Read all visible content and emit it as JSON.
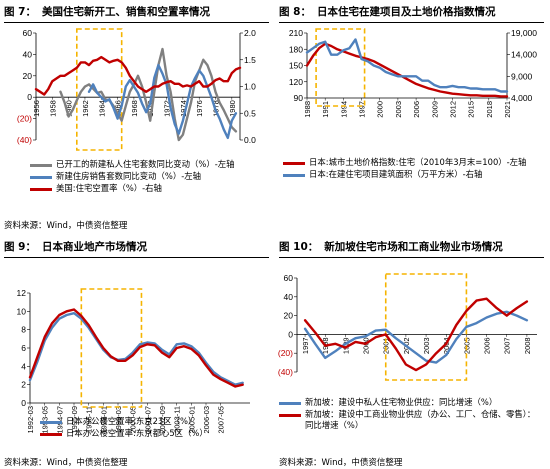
{
  "source": "资料来源：Wind，中债资信整理",
  "colors": {
    "red": "#c00000",
    "blue": "#4f81bd",
    "gray": "#808080",
    "highlight": "#f5b400",
    "neg": "#c00000"
  },
  "chart_data": [
    {
      "type": "line",
      "number": "图 7：",
      "title": "美国住宅新开工、销售和空置率情况",
      "left_axis": {
        "ticks": [
          "60",
          "40",
          "20",
          "0",
          "(20)",
          "(40)"
        ],
        "values": [
          60,
          40,
          20,
          0,
          -20,
          -40
        ],
        "range": [
          -40,
          60
        ]
      },
      "right_axis": {
        "ticks": [
          "2.0",
          "1.5",
          "1.0",
          "0.5",
          "0.0"
        ],
        "values": [
          2.0,
          1.5,
          1.0,
          0.5,
          0.0
        ],
        "range": [
          0,
          2
        ]
      },
      "x_ticks": [
        "1956",
        "1958",
        "1960",
        "1962",
        "1964",
        "1966",
        "1968",
        "1970",
        "1972",
        "1974",
        "1976",
        "1978",
        "1980"
      ],
      "x_range": [
        1956,
        1981
      ],
      "highlight_x": [
        1961,
        1966.5
      ],
      "series": [
        {
          "name": "已开工的新建私人住宅套数同比变动（%）-左轴",
          "axis": "left",
          "color": "gray",
          "x": [
            1959,
            1959.5,
            1960,
            1960.5,
            1961,
            1961.5,
            1962,
            1962.5,
            1963,
            1963.5,
            1964,
            1964.5,
            1965,
            1965.5,
            1966,
            1966.5,
            1967,
            1967.5,
            1968,
            1968.5,
            1969,
            1969.5,
            1970,
            1970.5,
            1971,
            1971.5,
            1972,
            1972.5,
            1973,
            1973.5,
            1974,
            1974.5,
            1975,
            1975.5,
            1976,
            1976.5,
            1977,
            1977.5,
            1978,
            1978.5,
            1979,
            1979.5,
            1980,
            1980.5
          ],
          "y": [
            5,
            -5,
            -18,
            -12,
            -3,
            5,
            10,
            12,
            8,
            4,
            5,
            -2,
            -3,
            -8,
            -15,
            -22,
            -8,
            5,
            12,
            20,
            10,
            -5,
            -22,
            5,
            30,
            45,
            20,
            5,
            -20,
            -40,
            -35,
            -20,
            -5,
            15,
            25,
            35,
            30,
            20,
            5,
            -5,
            -12,
            -20,
            -28,
            -32
          ]
        },
        {
          "name": "新建住房销售套数同比变动（%）-左轴",
          "axis": "left",
          "color": "blue",
          "x": [
            1962.5,
            1963,
            1963.5,
            1964,
            1964.5,
            1965,
            1965.5,
            1966,
            1966.5,
            1967,
            1967.5,
            1968,
            1968.5,
            1969,
            1969.5,
            1970,
            1970.5,
            1971,
            1971.5,
            1972,
            1972.5,
            1973,
            1973.5,
            1974,
            1974.5,
            1975,
            1975.5,
            1976,
            1976.5,
            1977,
            1977.5,
            1978,
            1978.5,
            1979,
            1979.5,
            1980,
            1980.5
          ],
          "y": [
            5,
            12,
            4,
            0,
            -4,
            -2,
            -10,
            -20,
            -8,
            10,
            16,
            10,
            4,
            -6,
            -14,
            -6,
            18,
            30,
            22,
            12,
            -10,
            -25,
            -34,
            -22,
            -6,
            10,
            18,
            25,
            20,
            10,
            0,
            -12,
            -20,
            -30,
            -38,
            -22,
            -15
          ]
        },
        {
          "name": "美国:住宅空置率（%）-右轴",
          "axis": "right",
          "color": "red",
          "x": [
            1956,
            1956.5,
            1957,
            1957.5,
            1958,
            1958.5,
            1959,
            1959.5,
            1960,
            1960.5,
            1961,
            1961.5,
            1962,
            1962.5,
            1963,
            1963.5,
            1964,
            1964.5,
            1965,
            1965.5,
            1966,
            1966.5,
            1967,
            1967.5,
            1968,
            1968.5,
            1969,
            1969.5,
            1970,
            1970.5,
            1971,
            1971.5,
            1972,
            1972.5,
            1973,
            1973.5,
            1974,
            1974.5,
            1975,
            1975.5,
            1976,
            1976.5,
            1977,
            1977.5,
            1978,
            1978.5,
            1979,
            1979.5,
            1980,
            1980.5,
            1981
          ],
          "y": [
            0.95,
            0.9,
            0.85,
            0.95,
            1.1,
            1.15,
            1.2,
            1.2,
            1.25,
            1.3,
            1.35,
            1.45,
            1.45,
            1.4,
            1.48,
            1.5,
            1.55,
            1.5,
            1.45,
            1.48,
            1.5,
            1.45,
            1.35,
            1.2,
            1.1,
            1.0,
            0.95,
            0.9,
            0.95,
            1.0,
            1.0,
            1.05,
            1.08,
            1.1,
            1.05,
            1.05,
            1.0,
            1.02,
            1.0,
            1.05,
            1.1,
            1.0,
            1.0,
            1.05,
            1.12,
            1.15,
            1.1,
            1.1,
            1.25,
            1.32,
            1.35
          ]
        }
      ]
    },
    {
      "type": "line",
      "number": "图 8：",
      "title": "日本住宅在建项目及土地价格指数情况",
      "left_axis": {
        "ticks": [
          "210",
          "180",
          "150",
          "120",
          "90"
        ],
        "values": [
          210,
          180,
          150,
          120,
          90
        ],
        "range": [
          90,
          210
        ]
      },
      "right_axis": {
        "ticks": [
          "19,000",
          "14,000",
          "9,000",
          "4,000"
        ],
        "values": [
          19000,
          14000,
          9000,
          4000
        ],
        "range": [
          4000,
          19000
        ]
      },
      "x_ticks": [
        "1988",
        "1991",
        "1994",
        "1997",
        "2000",
        "2003",
        "2006",
        "2009",
        "2012",
        "2015",
        "2018",
        "2021"
      ],
      "x_range": [
        1988,
        2021
      ],
      "highlight_x": [
        1989.5,
        1997.5
      ],
      "series": [
        {
          "name": "日本:城市土地价格指数:住宅（2010年3月末=100）-左轴",
          "axis": "left",
          "color": "red",
          "x": [
            1988,
            1989,
            1990,
            1991,
            1992,
            1993,
            1994,
            1995,
            1996,
            1997,
            1998,
            1999,
            2000,
            2001,
            2002,
            2003,
            2004,
            2005,
            2006,
            2007,
            2008,
            2009,
            2010,
            2011,
            2012,
            2013,
            2014,
            2015,
            2016,
            2017,
            2018,
            2019,
            2020,
            2021
          ],
          "y": [
            150,
            168,
            182,
            190,
            186,
            180,
            176,
            172,
            168,
            165,
            162,
            158,
            152,
            146,
            140,
            134,
            128,
            122,
            116,
            112,
            108,
            105,
            102,
            100,
            98,
            97,
            96,
            95,
            95,
            94,
            94,
            94,
            93,
            93
          ]
        },
        {
          "name": "日本:在建住宅项目建筑面积（万平方米）-右轴",
          "axis": "right",
          "color": "blue",
          "x": [
            1988,
            1989,
            1990,
            1991,
            1992,
            1993,
            1994,
            1995,
            1996,
            1997,
            1998,
            1999,
            2000,
            2001,
            2002,
            2003,
            2004,
            2005,
            2006,
            2007,
            2008,
            2009,
            2010,
            2011,
            2012,
            2013,
            2014,
            2015,
            2016,
            2017,
            2018,
            2019,
            2020,
            2021
          ],
          "y": [
            14500,
            15500,
            16500,
            17000,
            14000,
            14000,
            15000,
            15500,
            17500,
            13000,
            12500,
            11500,
            11000,
            10000,
            9500,
            9000,
            9000,
            9000,
            9000,
            8000,
            8000,
            7000,
            6500,
            6500,
            6800,
            6500,
            6500,
            6200,
            6200,
            6000,
            6000,
            6000,
            5500,
            5500
          ]
        }
      ]
    },
    {
      "type": "line",
      "number": "图 9：",
      "title": "日本商业地产市场情况",
      "left_axis": {
        "ticks": [
          "12",
          "10",
          "8",
          "6",
          "4",
          "2",
          "0"
        ],
        "values": [
          12,
          10,
          8,
          6,
          4,
          2,
          0
        ],
        "range": [
          0,
          12
        ]
      },
      "x_ticks": [
        "1992-03",
        "1994-07",
        "1996-11",
        "1999-03",
        "2001-07",
        "2003-11",
        "2006-03",
        "1993-05",
        "1995-09",
        "1998-01",
        "2000-05",
        "2002-09",
        "2005-01",
        "2007-05"
      ],
      "x_order": [
        0,
        2,
        4,
        6,
        8,
        10,
        12,
        1,
        3,
        5,
        7,
        9,
        11,
        13
      ],
      "x_range": [
        0,
        15
      ],
      "highlight_x": [
        3.5,
        7.6
      ],
      "series": [
        {
          "name": "日本办公楼空置率:东京23区（%）",
          "axis": "left",
          "color": "blue",
          "x": [
            0,
            0.5,
            1,
            1.5,
            2,
            2.5,
            3,
            3.5,
            4,
            4.5,
            5,
            5.5,
            6,
            6.5,
            7,
            7.5,
            8,
            8.5,
            9,
            9.5,
            10,
            10.5,
            11,
            11.5,
            12,
            12.5,
            13,
            13.5,
            14,
            14.5
          ],
          "y": [
            2.5,
            4.5,
            6.8,
            8.2,
            9.2,
            9.6,
            9.8,
            9.2,
            8.2,
            7.0,
            5.8,
            5.0,
            4.7,
            4.8,
            5.5,
            6.4,
            6.6,
            6.5,
            5.8,
            5.3,
            6.4,
            6.5,
            6.2,
            5.5,
            4.4,
            3.4,
            2.8,
            2.4,
            2.0,
            2.2
          ]
        },
        {
          "name": "日本办公楼空置率:东京都心5区（%）",
          "axis": "left",
          "color": "red",
          "x": [
            0,
            0.5,
            1,
            1.5,
            2,
            2.5,
            3,
            3.5,
            4,
            4.5,
            5,
            5.5,
            6,
            6.5,
            7,
            7.5,
            8,
            8.5,
            9,
            9.5,
            10,
            10.5,
            11,
            11.5,
            12,
            12.5,
            13,
            13.5,
            14,
            14.5
          ],
          "y": [
            2.8,
            5.0,
            7.2,
            8.7,
            9.6,
            10.0,
            10.2,
            9.5,
            8.5,
            7.2,
            6.0,
            5.1,
            4.6,
            4.6,
            5.2,
            6.1,
            6.4,
            6.3,
            5.5,
            5.0,
            6.0,
            6.2,
            5.9,
            5.2,
            4.1,
            3.1,
            2.6,
            2.2,
            1.8,
            2.0
          ]
        }
      ]
    },
    {
      "type": "line",
      "number": "图 10：",
      "title": "新加坡住宅市场和工商业物业市场情况",
      "left_axis": {
        "ticks": [
          "60",
          "40",
          "20",
          "0",
          "(20)",
          "(40)"
        ],
        "values": [
          60,
          40,
          20,
          0,
          -20,
          -40
        ],
        "range": [
          -40,
          60
        ]
      },
      "x_ticks": [
        "1997",
        "1998",
        "1999",
        "2000",
        "2001",
        "2002",
        "2003",
        "2004",
        "2005",
        "2006",
        "2007",
        "2008"
      ],
      "x_range": [
        1996.6,
        2008.5
      ],
      "highlight_x": [
        2001,
        2005
      ],
      "series": [
        {
          "name": "新加坡：建设中私人住宅物业供应：同比增速（%）",
          "axis": "left",
          "color": "blue",
          "x": [
            1997,
            1997.5,
            1998,
            1998.5,
            1999,
            1999.5,
            2000,
            2000.5,
            2001,
            2001.5,
            2002,
            2002.5,
            2003,
            2003.5,
            2004,
            2004.5,
            2005,
            2005.5,
            2006,
            2006.5,
            2007,
            2007.5,
            2008
          ],
          "y": [
            6,
            -10,
            -25,
            -18,
            -10,
            -4,
            -2,
            4,
            5,
            -4,
            -12,
            -20,
            -28,
            -30,
            -22,
            -5,
            8,
            12,
            18,
            22,
            24,
            20,
            15
          ]
        },
        {
          "name": "新加坡：建设中工商业物业供应（办公、工厂、仓储、零售）：同比增速（%）",
          "axis": "left",
          "color": "red",
          "x": [
            1997,
            1997.5,
            1998,
            1998.5,
            1999,
            1999.5,
            2000,
            2000.5,
            2001,
            2001.5,
            2002,
            2002.5,
            2003,
            2003.5,
            2004,
            2004.5,
            2005,
            2005.5,
            2006,
            2006.5,
            2007,
            2007.5,
            2008
          ],
          "y": [
            15,
            2,
            -12,
            -10,
            -14,
            -8,
            -10,
            -3,
            0,
            -15,
            -32,
            -38,
            -32,
            -20,
            -10,
            10,
            25,
            36,
            38,
            28,
            20,
            28,
            35
          ]
        }
      ]
    }
  ]
}
